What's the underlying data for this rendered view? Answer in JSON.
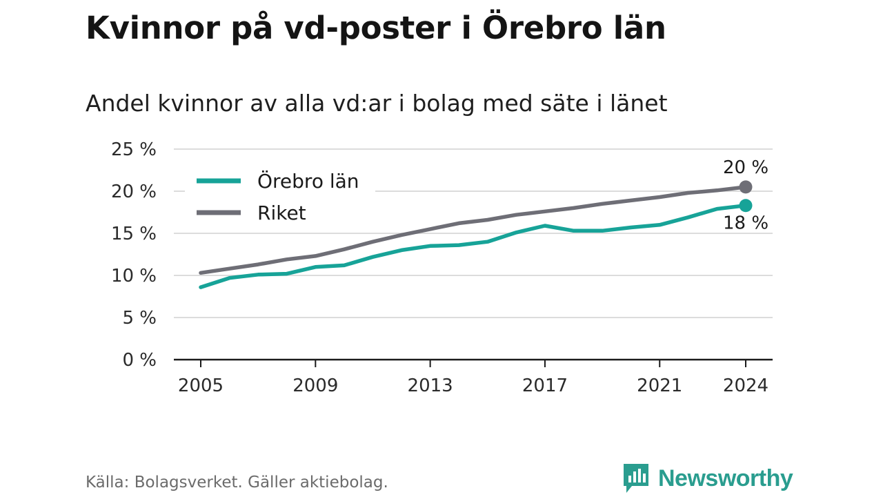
{
  "title": "Kvinnor på vd-poster i Örebro län",
  "subtitle": "Andel kvinnor av alla vd:ar i bolag med säte i länet",
  "source": "Källa: Bolagsverket. Gäller aktiebolag.",
  "brand": "Newsworthy",
  "colors": {
    "orebro": "#17a398",
    "riket": "#6e6e76",
    "grid": "#dcdcdc",
    "axis": "#1a1a1a"
  },
  "chart_data": {
    "type": "line",
    "x": [
      2005,
      2006,
      2007,
      2008,
      2009,
      2010,
      2011,
      2012,
      2013,
      2014,
      2015,
      2016,
      2017,
      2018,
      2019,
      2020,
      2021,
      2022,
      2023,
      2024
    ],
    "series": [
      {
        "name": "Örebro län",
        "color": "#17a398",
        "values": [
          8.6,
          9.7,
          10.1,
          10.2,
          11.0,
          11.2,
          12.2,
          13.0,
          13.5,
          13.6,
          14.0,
          15.1,
          15.9,
          15.3,
          15.3,
          15.7,
          16.0,
          16.9,
          17.9,
          18.3
        ],
        "end_label": "18 %"
      },
      {
        "name": "Riket",
        "color": "#6e6e76",
        "values": [
          10.3,
          10.8,
          11.3,
          11.9,
          12.3,
          13.1,
          14.0,
          14.8,
          15.5,
          16.2,
          16.6,
          17.2,
          17.6,
          18.0,
          18.5,
          18.9,
          19.3,
          19.8,
          20.1,
          20.5
        ],
        "end_label": "20 %"
      }
    ],
    "yticks": [
      "0 %",
      "5 %",
      "10 %",
      "15 %",
      "20 %",
      "25 %"
    ],
    "xticks": [
      "2005",
      "2009",
      "2013",
      "2017",
      "2021",
      "2024"
    ],
    "ylim": [
      0,
      25
    ],
    "xlim": [
      2005,
      2024
    ],
    "grid": true,
    "legend_position": "top-left"
  }
}
